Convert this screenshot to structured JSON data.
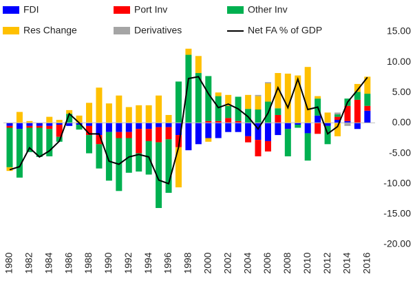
{
  "chart_data": {
    "type": "stacked-bar-line",
    "categories": [
      "1980",
      null,
      "1982",
      null,
      "1984",
      null,
      "1986",
      null,
      "1988",
      null,
      "1990",
      null,
      "1992",
      null,
      "1994",
      null,
      "1996",
      null,
      "1998",
      null,
      "2000",
      null,
      "2002",
      null,
      "2004",
      null,
      "2006",
      null,
      "2008",
      null,
      "2010",
      null,
      "2012",
      null,
      "2014",
      null,
      "2016"
    ],
    "series": [
      {
        "name": "FDI",
        "color": "#0000ff",
        "kind": "bar",
        "values": [
          -0.5,
          -1,
          -0.5,
          -0.5,
          -0.5,
          -0.3,
          -0.5,
          -0.3,
          -0.5,
          -2,
          -1.5,
          -1.5,
          -1.5,
          -1,
          -1,
          -0.7,
          -0.7,
          -2,
          -4.5,
          -3.5,
          -2.5,
          -2.5,
          -1.5,
          -1.5,
          -2.2,
          -2.8,
          -3,
          -2,
          -1,
          -0.3,
          -1.7,
          1.2,
          -0.5,
          0.5,
          0.3,
          -1,
          2
        ]
      },
      {
        "name": "Port Inv",
        "color": "#ff0000",
        "kind": "bar",
        "values": [
          -0.3,
          0,
          -0.3,
          -0.3,
          -0.5,
          -2,
          0,
          0,
          -1.5,
          -1.5,
          0,
          -1,
          -1,
          -4,
          -2,
          -2.5,
          -2,
          -2,
          0,
          0,
          0.3,
          0.3,
          0.8,
          0.3,
          -1,
          -2.7,
          -1.7,
          1.3,
          0,
          0,
          0,
          -1.8,
          0,
          0.5,
          2.5,
          3.8,
          0.8
        ]
      },
      {
        "name": "Other Inv",
        "color": "#00b050",
        "kind": "bar",
        "values": [
          -6.5,
          -8,
          -4,
          -4.8,
          -4.5,
          -0.8,
          1.5,
          -0.8,
          -3,
          -4,
          -8,
          -8.7,
          -5.7,
          -3,
          -5.5,
          -10.8,
          -8.8,
          6.8,
          11.2,
          8.2,
          7.4,
          4.1,
          2,
          4,
          2.3,
          2.2,
          3.5,
          1.1,
          -4.5,
          -0.5,
          -4.5,
          2.8,
          -3,
          0.4,
          1.2,
          1.3,
          2
        ]
      },
      {
        "name": "Res Change",
        "color": "#ffc000",
        "kind": "bar",
        "values": [
          -0.6,
          1.8,
          0.3,
          0,
          1,
          0.5,
          0.6,
          1.2,
          3.3,
          5.8,
          3.2,
          4.5,
          2.6,
          2.9,
          2.9,
          4.5,
          1.3,
          -6.6,
          1,
          2.8,
          -0.6,
          0.6,
          1.8,
          0,
          2.3,
          2.2,
          3,
          5.8,
          8.1,
          7.8,
          9.2,
          0.4,
          1.7,
          -2.2,
          0,
          1.3,
          2.8
        ]
      },
      {
        "name": "Derivatives",
        "color": "#a5a5a5",
        "kind": "bar",
        "values": [
          0,
          0,
          0,
          0,
          0,
          0,
          0,
          0,
          0,
          0,
          0,
          0,
          0,
          0,
          0,
          0,
          0,
          0,
          0,
          0,
          0,
          0,
          0,
          0,
          0,
          0.2,
          0.2,
          0,
          0,
          0,
          0,
          0,
          0,
          0.3,
          -0.5,
          0,
          0
        ]
      },
      {
        "name": "Net FA % of GDP",
        "color": "#000000",
        "kind": "line",
        "values": [
          -7.7,
          -7.2,
          -4.1,
          -5.6,
          -4.6,
          -3,
          1.5,
          0,
          -1.8,
          -1.8,
          -6.3,
          -6.8,
          -5.6,
          -5.2,
          -5.6,
          -9.4,
          -10,
          -4,
          7.3,
          7.6,
          4.8,
          2.5,
          3.1,
          2.3,
          1,
          -1,
          1.6,
          5.8,
          2.5,
          7.2,
          2.2,
          2.6,
          -1.8,
          -0.6,
          3.4,
          5.4,
          7.5
        ]
      }
    ],
    "ylim": [
      -20,
      15
    ],
    "yticks": [
      {
        "value": -20,
        "label": "-20.00"
      },
      {
        "value": -15,
        "label": "-15.00"
      },
      {
        "value": -10,
        "label": "-10.00"
      },
      {
        "value": -5,
        "label": "-5.00"
      },
      {
        "value": 0,
        "label": "0.00"
      },
      {
        "value": 5,
        "label": "5.00"
      },
      {
        "value": 10,
        "label": "10.00"
      },
      {
        "value": 15,
        "label": "15.00"
      }
    ],
    "y_axis_side": "right",
    "grid": false
  }
}
